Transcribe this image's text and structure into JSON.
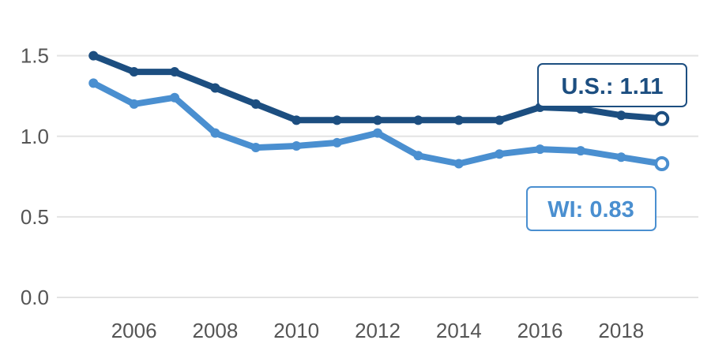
{
  "chart_data": {
    "type": "line",
    "title": "",
    "xlabel": "",
    "ylabel": "",
    "x": [
      2005,
      2006,
      2007,
      2008,
      2009,
      2010,
      2011,
      2012,
      2013,
      2014,
      2015,
      2016,
      2017,
      2018,
      2019
    ],
    "xlim": [
      2004.1,
      2019.9
    ],
    "ylim": [
      0,
      1.65
    ],
    "x_ticks": [
      "2006",
      "2008",
      "2010",
      "2012",
      "2014",
      "2016",
      "2018"
    ],
    "y_ticks": [
      "0.0",
      "0.5",
      "1.0",
      "1.5"
    ],
    "grid": "horizontal",
    "legend": "none",
    "series": [
      {
        "key": "us",
        "values": [
          1.5,
          1.4,
          1.4,
          1.3,
          1.2,
          1.1,
          1.1,
          1.1,
          1.1,
          1.1,
          1.1,
          1.18,
          1.17,
          1.13,
          1.11
        ],
        "color": "#1c4e80",
        "callout": "U.S.: 1.11"
      },
      {
        "key": "wi",
        "values": [
          1.33,
          1.2,
          1.24,
          1.02,
          0.93,
          0.94,
          0.96,
          1.02,
          0.88,
          0.83,
          0.89,
          0.92,
          0.91,
          0.87,
          0.83
        ],
        "color": "#4a8fd0",
        "callout": "WI: 0.83"
      }
    ]
  }
}
